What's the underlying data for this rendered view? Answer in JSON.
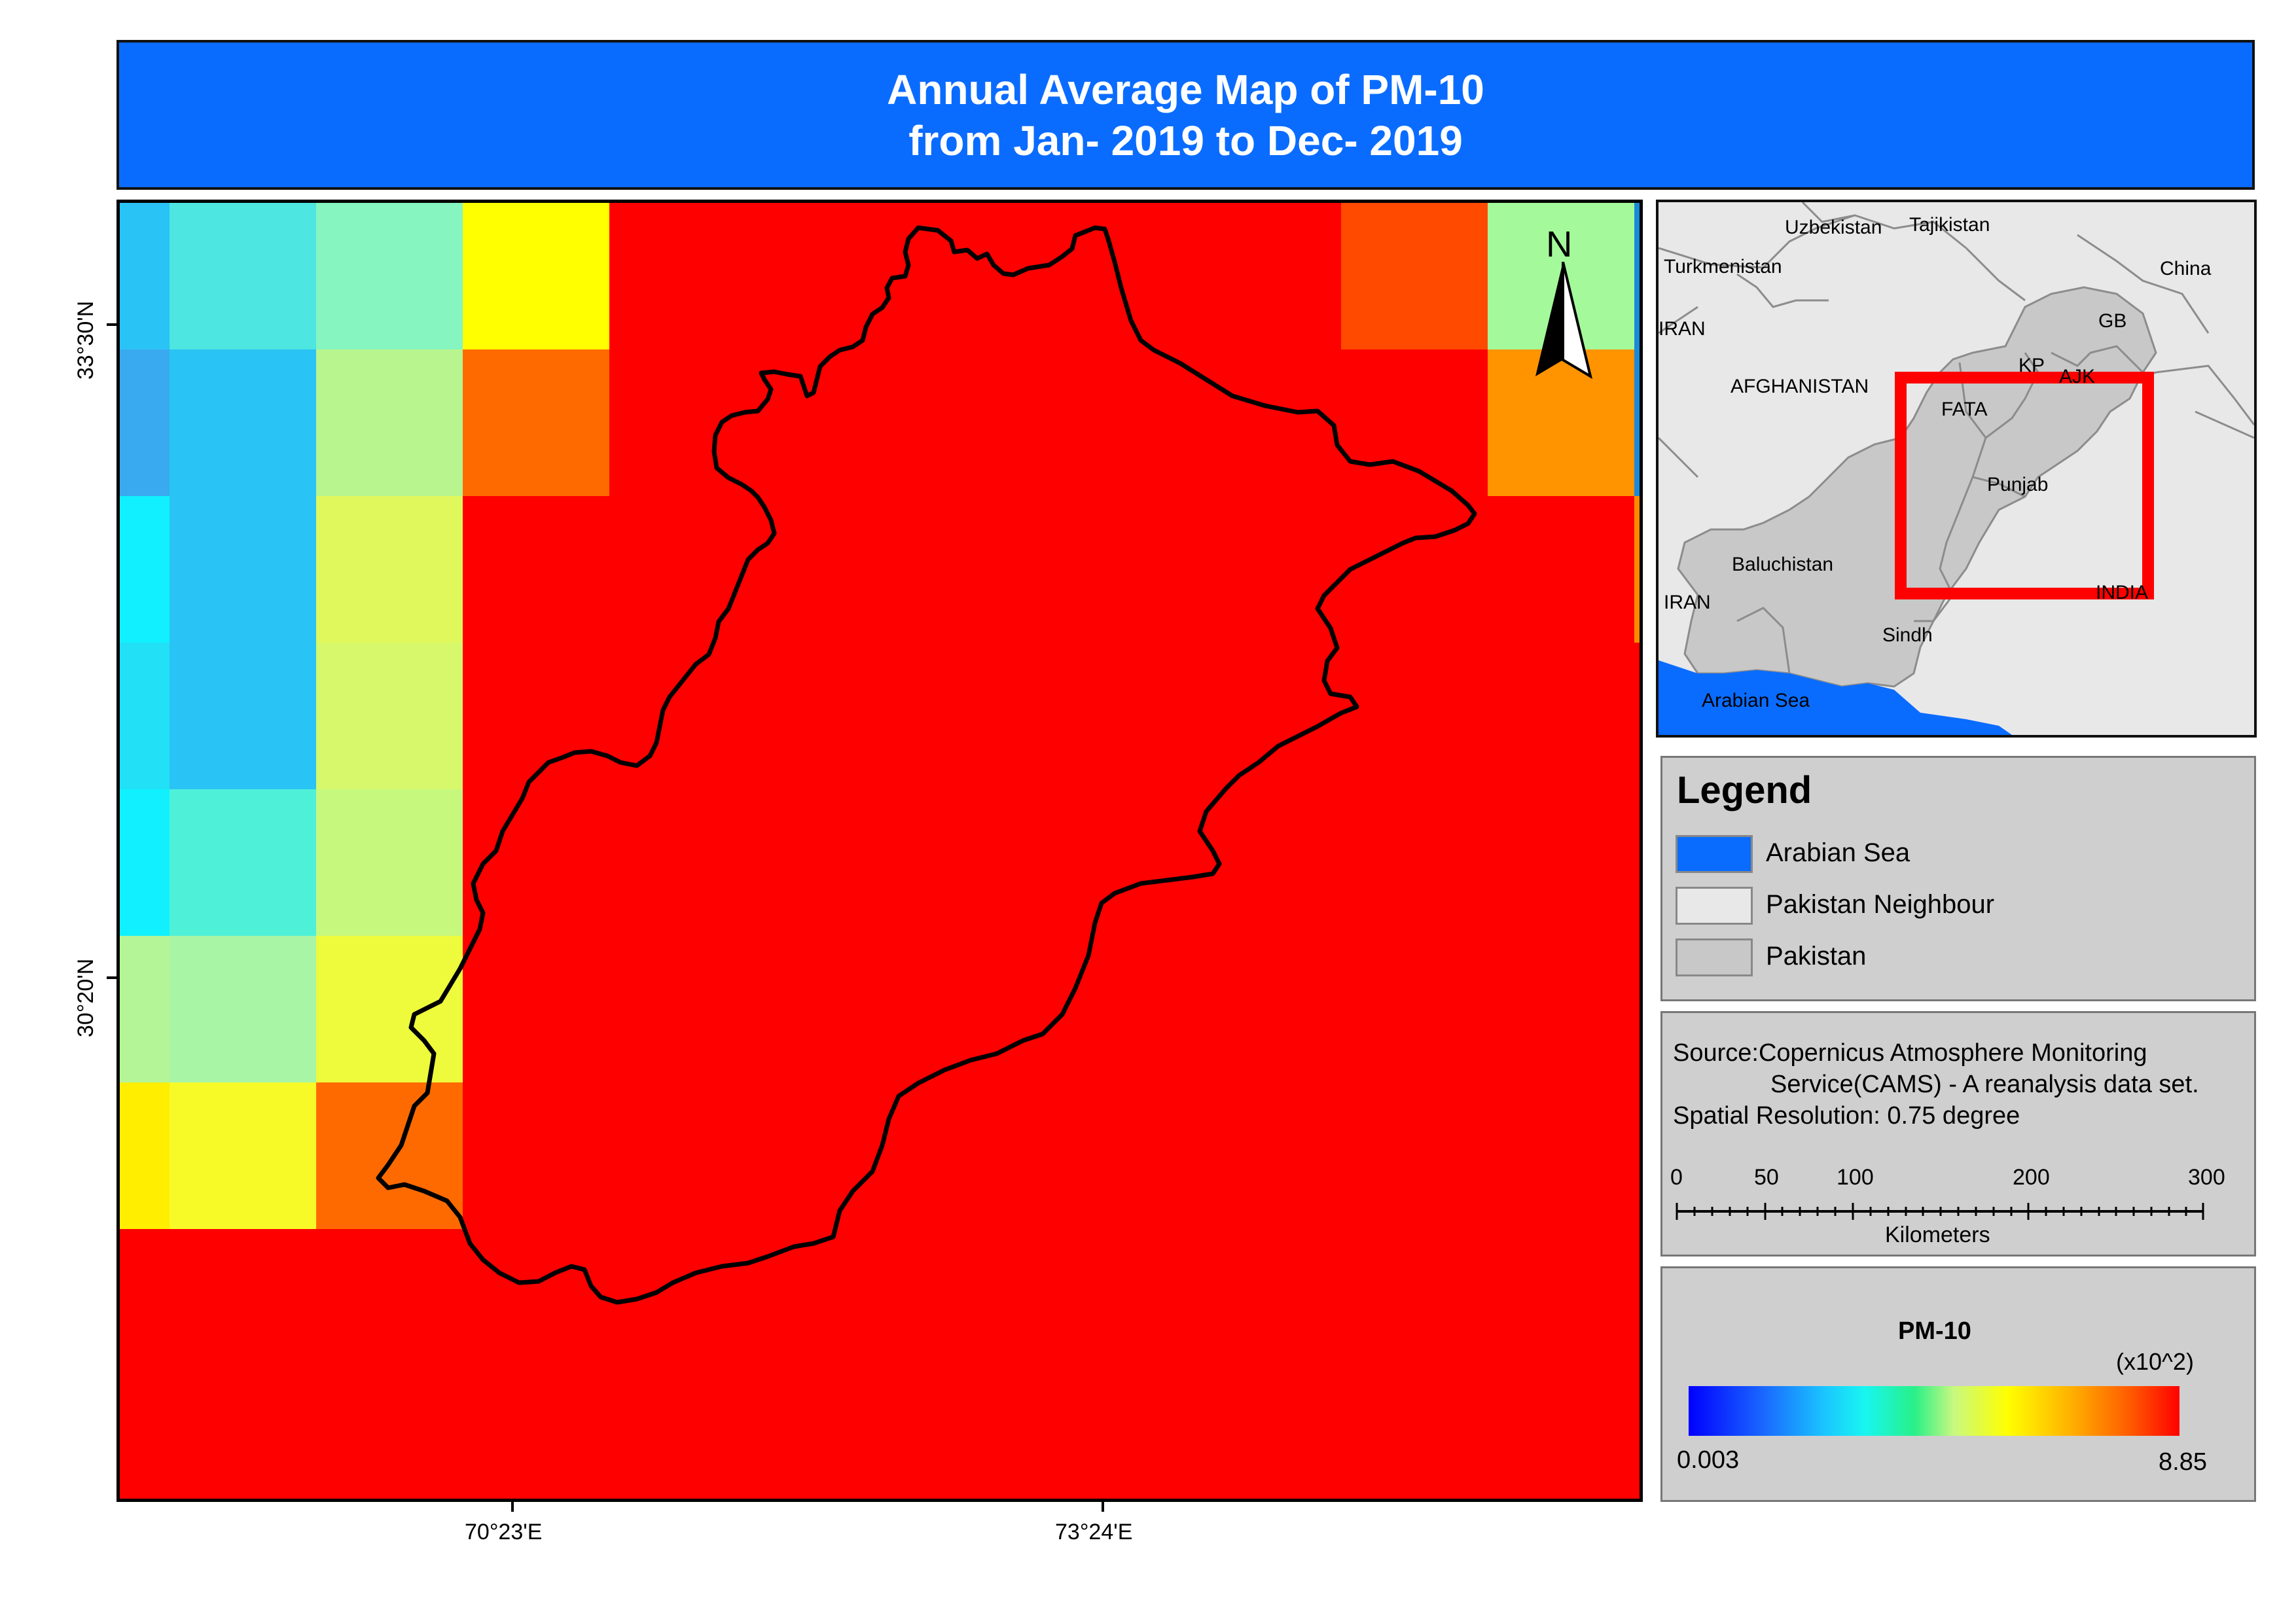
{
  "title": {
    "line1": "Annual Average Map of PM-10",
    "line2": "from Jan- 2019 to Dec- 2019"
  },
  "map": {
    "north_arrow_label": "N",
    "lat_labels": [
      "33°30'N",
      "30°20'N"
    ],
    "lon_labels": [
      "70°23'E",
      "73°24'E"
    ],
    "colors": {
      "background_pm": "#ff0000",
      "boundary": "#000000"
    }
  },
  "inset": {
    "labels": {
      "uzbekistan": "Uzbekistan",
      "tajikistan": "Tajikistan",
      "turkmenistan": "Turkmenistan",
      "china": "China",
      "iran_top": "IRAN",
      "gb": "GB",
      "kp": "KP",
      "ajk": "AJK",
      "afghanistan": "AFGHANISTAN",
      "fata": "FATA",
      "punjab": "Punjab",
      "baluchistan": "Baluchistan",
      "iran_bottom": "IRAN",
      "india": "INDIA",
      "sindh": "Sindh",
      "arabian_sea": "Arabian Sea"
    },
    "colors": {
      "neighbour": "#e8e8e8",
      "pakistan": "#c8c8c8",
      "sea": "#0a6cff",
      "extent_box": "#ff0000"
    }
  },
  "legend": {
    "title": "Legend",
    "items": [
      {
        "label": "Arabian Sea",
        "color": "#0a6cff"
      },
      {
        "label": "Pakistan Neighbour",
        "color": "#e8e8e8"
      },
      {
        "label": "Pakistan",
        "color": "#c8c8c8"
      }
    ]
  },
  "source": {
    "line1": "Source:Copernicus Atmosphere Monitoring",
    "line2": "Service(CAMS) - A reanalysis data set.",
    "line3": "Spatial Resolution: 0.75  degree"
  },
  "scale_bar": {
    "ticks": [
      "0",
      "50",
      "100",
      "200",
      "300"
    ],
    "unit": "Kilometers"
  },
  "colorbar": {
    "title": "PM-10",
    "multiplier": "(x10^2)",
    "min": "0.003",
    "max": "8.85"
  }
}
